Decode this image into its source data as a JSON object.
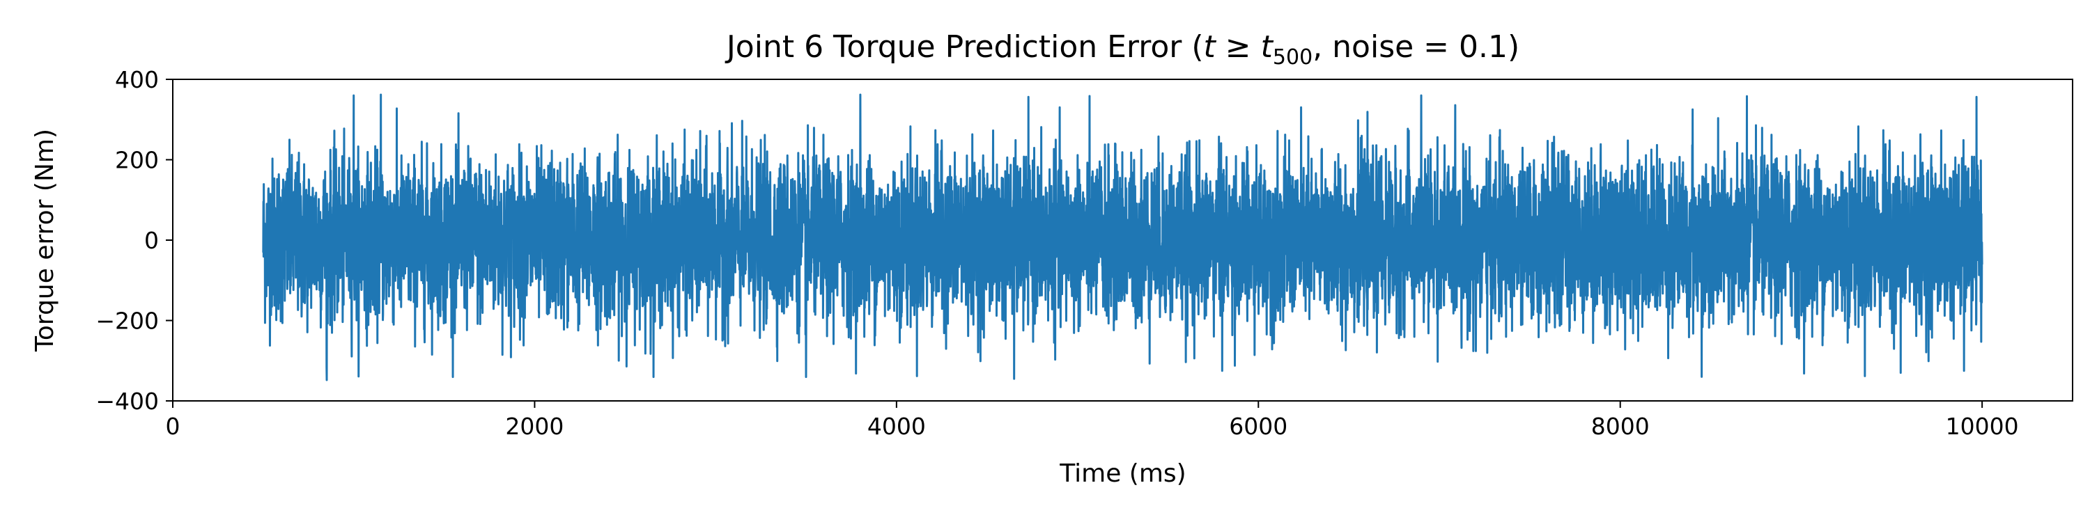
{
  "chart_data": {
    "type": "line",
    "title": "Joint 6 Torque Prediction Error (t ≥ t500, noise = 0.1)",
    "title_parts": {
      "prefix": "Joint 6 Torque Prediction Error (",
      "t": "t",
      "geq": " ≥ ",
      "t2": "t",
      "sub": "500",
      "suffix": ", noise = 0.1)"
    },
    "xlabel": "Time (ms)",
    "ylabel": "Torque error (Nm)",
    "xlim": [
      0,
      10500
    ],
    "ylim": [
      -400,
      400
    ],
    "xticks": [
      0,
      2000,
      4000,
      6000,
      8000,
      10000
    ],
    "yticks": [
      400,
      200,
      0,
      -200,
      -400
    ],
    "xtick_labels": [
      "0",
      "2000",
      "4000",
      "6000",
      "8000",
      "10000"
    ],
    "ytick_labels": [
      "400",
      "200",
      "0",
      "−200",
      "−400"
    ],
    "grid": false,
    "series": [
      {
        "color": "#1f77b4",
        "x_range": [
          500,
          10000
        ],
        "x_step": 1,
        "approx_std": 100,
        "approx_min": -370,
        "approx_max": 365,
        "spikes": [
          {
            "x": 1000,
            "y": 360
          },
          {
            "x": 1150,
            "y": 362
          },
          {
            "x": 3800,
            "y": 362
          },
          {
            "x": 6900,
            "y": 360
          },
          {
            "x": 8700,
            "y": 358
          },
          {
            "x": 8400,
            "y": 325
          },
          {
            "x": 8450,
            "y": -340
          },
          {
            "x": 3500,
            "y": -372
          },
          {
            "x": 4650,
            "y": -345
          },
          {
            "x": 850,
            "y": -315
          },
          {
            "x": 5800,
            "y": -325
          },
          {
            "x": 9550,
            "y": -330
          },
          {
            "x": 9900,
            "y": -325
          }
        ]
      }
    ]
  }
}
